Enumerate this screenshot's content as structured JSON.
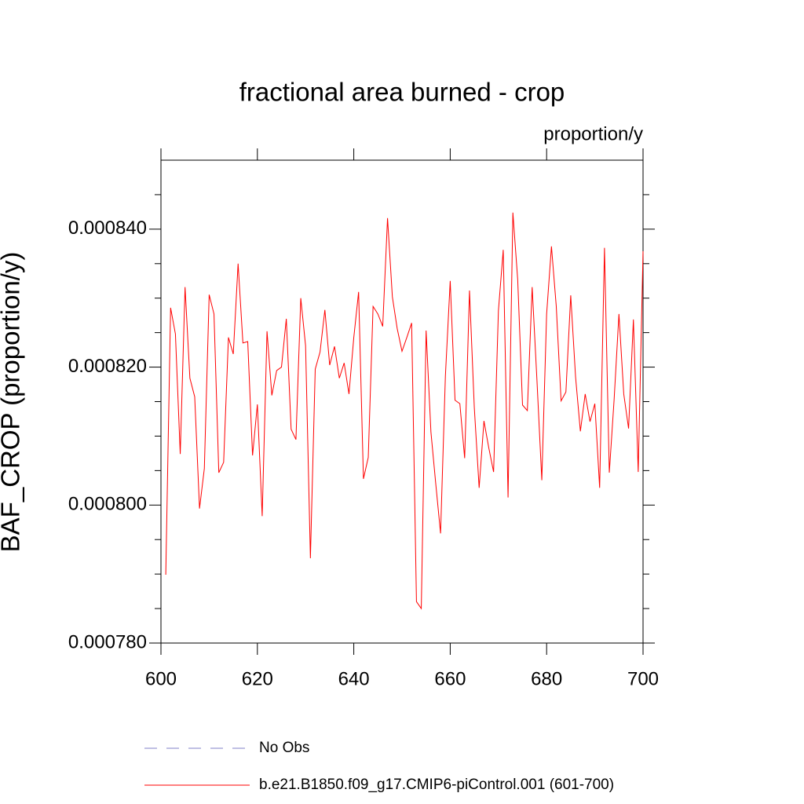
{
  "chart_data": {
    "type": "line",
    "title": "fractional area burned - crop",
    "units_label": "proportion/y",
    "y_label": "BAF_CROP  (proportion/y)",
    "x": [
      601,
      602,
      603,
      604,
      605,
      606,
      607,
      608,
      609,
      610,
      611,
      612,
      613,
      614,
      615,
      616,
      617,
      618,
      619,
      620,
      621,
      622,
      623,
      624,
      625,
      626,
      627,
      628,
      629,
      630,
      631,
      632,
      633,
      634,
      635,
      636,
      637,
      638,
      639,
      640,
      641,
      642,
      643,
      644,
      645,
      646,
      647,
      648,
      649,
      650,
      651,
      652,
      653,
      654,
      655,
      656,
      657,
      658,
      659,
      660,
      661,
      662,
      663,
      664,
      665,
      666,
      667,
      668,
      669,
      670,
      671,
      672,
      673,
      674,
      675,
      676,
      677,
      678,
      679,
      680,
      681,
      682,
      683,
      684,
      685,
      686,
      687,
      688,
      689,
      690,
      691,
      692,
      693,
      694,
      695,
      696,
      697,
      698,
      699,
      700
    ],
    "series": [
      {
        "name": "b.e21.B1850.f09_g17.CMIP6-piControl.001 (601-700)",
        "color": "#ff0000",
        "values": [
          0.0007899,
          0.0008286,
          0.0008248,
          0.0008074,
          0.0008316,
          0.0008184,
          0.0008157,
          0.0007995,
          0.0008053,
          0.0008305,
          0.0008277,
          0.0008047,
          0.0008062,
          0.0008243,
          0.0008219,
          0.000835,
          0.0008235,
          0.0008237,
          0.0008072,
          0.0008146,
          0.0007984,
          0.0008252,
          0.0008159,
          0.0008195,
          0.00082,
          0.000827,
          0.000811,
          0.0008095,
          0.00083,
          0.0008231,
          0.0007923,
          0.0008197,
          0.0008222,
          0.0008283,
          0.0008203,
          0.000823,
          0.0008184,
          0.0008206,
          0.0008161,
          0.0008243,
          0.0008309,
          0.0008038,
          0.0008069,
          0.0008288,
          0.0008277,
          0.0008259,
          0.0008416,
          0.0008302,
          0.0008256,
          0.0008223,
          0.0008243,
          0.0008264,
          0.000786,
          0.000785,
          0.0008253,
          0.0008106,
          0.0008031,
          0.0007959,
          0.0008187,
          0.0008325,
          0.0008152,
          0.0008147,
          0.0008068,
          0.0008311,
          0.0008141,
          0.0008025,
          0.0008122,
          0.0008083,
          0.0008048,
          0.0008282,
          0.000837,
          0.0008011,
          0.0008424,
          0.0008327,
          0.0008145,
          0.0008137,
          0.0008316,
          0.000818,
          0.0008036,
          0.0008277,
          0.0008375,
          0.0008288,
          0.0008151,
          0.0008164,
          0.0008304,
          0.0008186,
          0.0008107,
          0.0008161,
          0.0008121,
          0.0008147,
          0.0008025,
          0.0008373,
          0.0008047,
          0.0008153,
          0.0008277,
          0.0008161,
          0.0008111,
          0.0008269,
          0.0008048,
          0.0008368
        ]
      }
    ],
    "legend_only_series": [
      {
        "name": "No Obs",
        "color": "#8080c8",
        "dash": "dashed"
      }
    ],
    "xlim": [
      600,
      700
    ],
    "xticks": [
      600,
      620,
      640,
      660,
      680,
      700
    ],
    "ylim": [
      0.00078,
      0.00085
    ],
    "yticks": [
      {
        "value": 0.00078,
        "label": "0.000780"
      },
      {
        "value": 0.0008,
        "label": "0.000800"
      },
      {
        "value": 0.00082,
        "label": "0.000820"
      },
      {
        "value": 0.00084,
        "label": "0.000840"
      }
    ],
    "yminorticks": [
      0.000785,
      0.00079,
      0.000795,
      0.000805,
      0.00081,
      0.000815,
      0.000825,
      0.00083,
      0.000835,
      0.000845
    ]
  }
}
